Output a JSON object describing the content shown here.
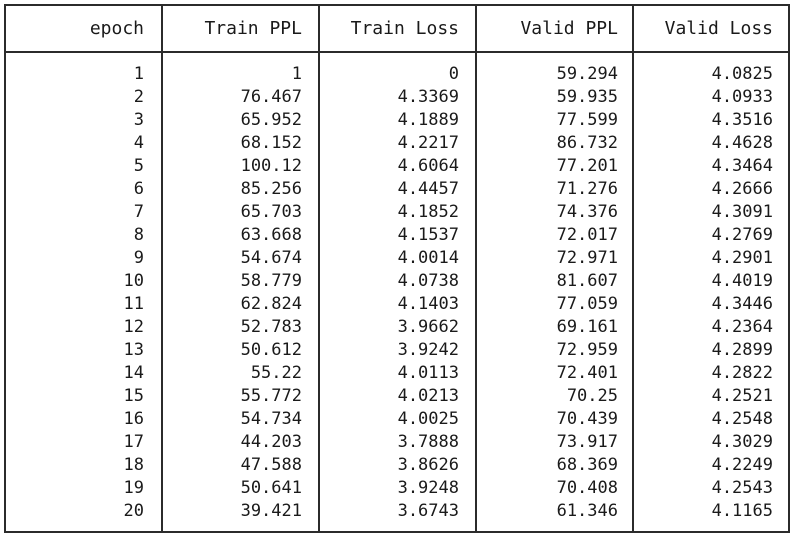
{
  "chart_data": {
    "type": "table",
    "columns": [
      "epoch",
      "Train PPL",
      "Train Loss",
      "Valid PPL",
      "Valid Loss"
    ],
    "rows": [
      [
        "1",
        "1",
        "0",
        "59.294",
        "4.0825"
      ],
      [
        "2",
        "76.467",
        "4.3369",
        "59.935",
        "4.0933"
      ],
      [
        "3",
        "65.952",
        "4.1889",
        "77.599",
        "4.3516"
      ],
      [
        "4",
        "68.152",
        "4.2217",
        "86.732",
        "4.4628"
      ],
      [
        "5",
        "100.12",
        "4.6064",
        "77.201",
        "4.3464"
      ],
      [
        "6",
        "85.256",
        "4.4457",
        "71.276",
        "4.2666"
      ],
      [
        "7",
        "65.703",
        "4.1852",
        "74.376",
        "4.3091"
      ],
      [
        "8",
        "63.668",
        "4.1537",
        "72.017",
        "4.2769"
      ],
      [
        "9",
        "54.674",
        "4.0014",
        "72.971",
        "4.2901"
      ],
      [
        "10",
        "58.779",
        "4.0738",
        "81.607",
        "4.4019"
      ],
      [
        "11",
        "62.824",
        "4.1403",
        "77.059",
        "4.3446"
      ],
      [
        "12",
        "52.783",
        "3.9662",
        "69.161",
        "4.2364"
      ],
      [
        "13",
        "50.612",
        "3.9242",
        "72.959",
        "4.2899"
      ],
      [
        "14",
        "55.22",
        "4.0113",
        "72.401",
        "4.2822"
      ],
      [
        "15",
        "55.772",
        "4.0213",
        "70.25",
        "4.2521"
      ],
      [
        "16",
        "54.734",
        "4.0025",
        "70.439",
        "4.2548"
      ],
      [
        "17",
        "44.203",
        "3.7888",
        "73.917",
        "4.3029"
      ],
      [
        "18",
        "47.588",
        "3.8626",
        "68.369",
        "4.2249"
      ],
      [
        "19",
        "50.641",
        "3.9248",
        "70.408",
        "4.2543"
      ],
      [
        "20",
        "39.421",
        "3.6743",
        "61.346",
        "4.1165"
      ]
    ]
  }
}
